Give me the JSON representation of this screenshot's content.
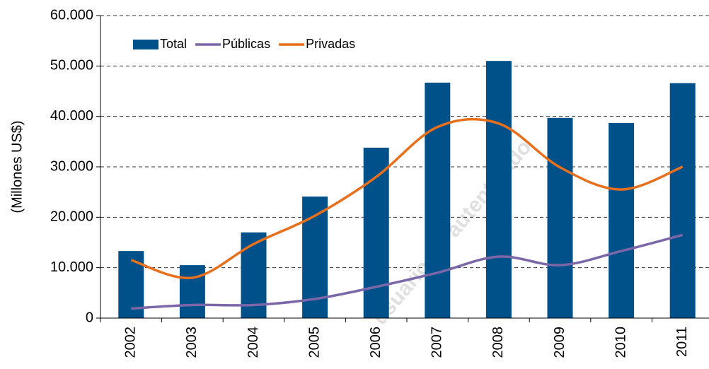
{
  "chart_data": {
    "type": "bar",
    "y_axis_label": "(Millones US$)",
    "watermark": "usuario no autenticado",
    "categories": [
      "2002",
      "2003",
      "2004",
      "2005",
      "2006",
      "2007",
      "2008",
      "2009",
      "2010",
      "2011"
    ],
    "series": [
      {
        "name": "Total",
        "type": "bar",
        "color": "#00508a",
        "values": [
          13300,
          10500,
          17000,
          24100,
          33800,
          46700,
          51000,
          39700,
          38700,
          46600
        ]
      },
      {
        "name": "Públicas",
        "type": "line",
        "color": "#7b66a8",
        "values": [
          1900,
          2600,
          2600,
          3800,
          6200,
          9000,
          12200,
          10500,
          13300,
          16500
        ]
      },
      {
        "name": "Privadas",
        "type": "line",
        "color": "#e86f1b",
        "values": [
          11500,
          8000,
          14700,
          20300,
          28000,
          37900,
          38600,
          29900,
          25500,
          30000
        ]
      }
    ],
    "ylim": [
      0,
      60000
    ],
    "yticks": [
      0,
      {
        "value": 10000,
        "label": "10.000"
      },
      {
        "value": 20000,
        "label": "20.000"
      },
      {
        "value": 30000,
        "label": "30.000"
      },
      {
        "value": 40000,
        "label": "40.000"
      },
      {
        "value": 50000,
        "label": "50.000"
      },
      {
        "value": 60000,
        "label": "60.000"
      }
    ],
    "grid": true,
    "legend": "top-left"
  }
}
